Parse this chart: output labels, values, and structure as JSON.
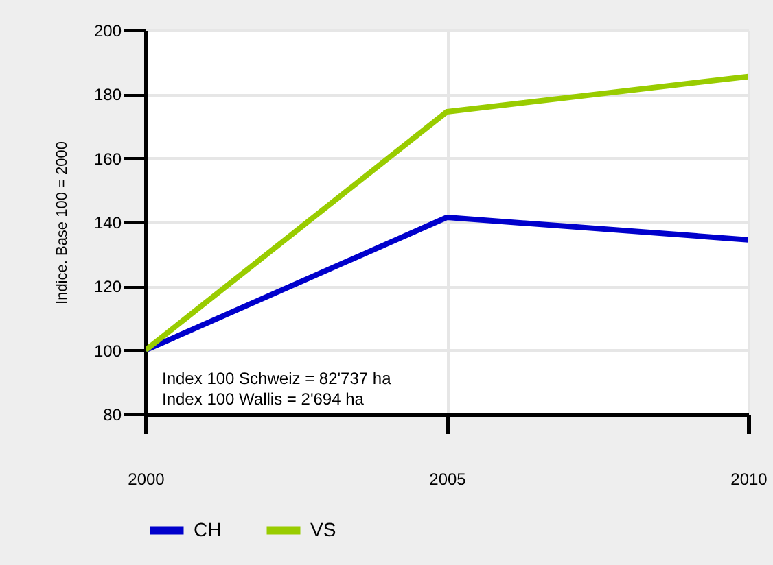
{
  "chart_data": {
    "type": "line",
    "ylabel": "Indice. Base 100 = 2000",
    "x": [
      2000,
      2005,
      2010
    ],
    "series": [
      {
        "name": "CH",
        "color": "#0000cc",
        "values": [
          100,
          141.5,
          134.5
        ]
      },
      {
        "name": "VS",
        "color": "#99cc00",
        "values": [
          100,
          174.5,
          185.5
        ]
      }
    ],
    "xlim": [
      2000,
      2010
    ],
    "xticks": [
      2000,
      2005,
      2010
    ],
    "ylim": [
      80,
      200
    ],
    "yticks": [
      80,
      100,
      120,
      140,
      160,
      180,
      200
    ],
    "annotations": [
      "Index 100 Schweiz = 82'737 ha",
      "Index 100 Wallis = 2'694 ha"
    ],
    "grid": true,
    "legend": "bottom",
    "marker": "none",
    "line_style": "solid"
  }
}
